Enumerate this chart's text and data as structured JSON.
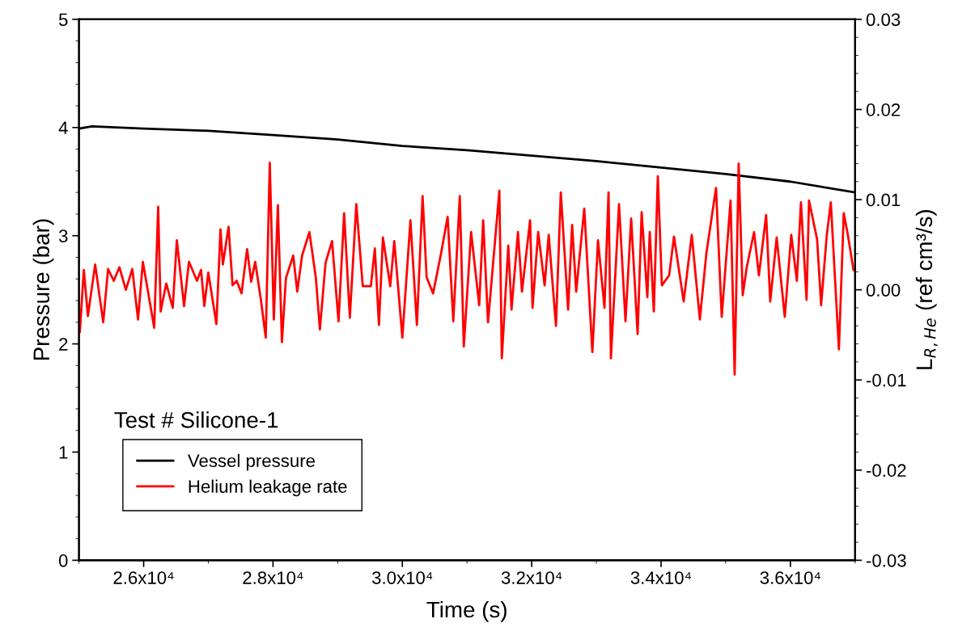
{
  "chart_data": {
    "type": "line",
    "xlabel": "Time (s)",
    "ylabel": "Pressure (bar)",
    "y2label": "L$_{R,He}$ (ref cm³/s)",
    "annotations": [
      "Test # Silicone-1"
    ],
    "xlim": [
      25000,
      37000
    ],
    "xticks": [
      {
        "value": 26000,
        "label": "2.6x10⁴"
      },
      {
        "value": 28000,
        "label": "2.8x10⁴"
      },
      {
        "value": 30000,
        "label": "3.0x10⁴"
      },
      {
        "value": 32000,
        "label": "3.2x10⁴"
      },
      {
        "value": 34000,
        "label": "3.4x10⁴"
      },
      {
        "value": 36000,
        "label": "3.6x10⁴"
      }
    ],
    "ylim": [
      0,
      5
    ],
    "yticks": [
      0,
      1,
      2,
      3,
      4,
      5
    ],
    "y2lim": [
      -0.03,
      0.03
    ],
    "y2ticks": [
      {
        "value": -0.03,
        "label": "-0.03"
      },
      {
        "value": -0.02,
        "label": "-0.02"
      },
      {
        "value": -0.01,
        "label": "-0.01"
      },
      {
        "value": 0,
        "label": "0.00"
      },
      {
        "value": 0.01,
        "label": "0.01"
      },
      {
        "value": 0.02,
        "label": "0.02"
      },
      {
        "value": 0.03,
        "label": "0.03"
      }
    ],
    "legend": "bottom left",
    "grid": false,
    "marker": "none",
    "line_style": "solid",
    "series": [
      {
        "name": "Vessel pressure",
        "color": "#000000",
        "axis": "y",
        "x": [
          25000,
          25200,
          26000,
          27000,
          28000,
          29000,
          30000,
          31000,
          32000,
          33000,
          34000,
          35000,
          36000,
          37000
        ],
        "values": [
          3.99,
          4.01,
          3.99,
          3.97,
          3.93,
          3.89,
          3.83,
          3.79,
          3.74,
          3.69,
          3.63,
          3.57,
          3.5,
          3.4
        ]
      },
      {
        "name": "Helium leakage rate",
        "color": "#ff0000",
        "axis": "y2",
        "x": [
          25000,
          25013,
          25075,
          25138,
          25250,
          25375,
          25450,
          25538,
          25625,
          25725,
          25825,
          25913,
          25988,
          26163,
          26225,
          26263,
          26350,
          26450,
          26513,
          26625,
          26700,
          26825,
          26888,
          26938,
          27000,
          27125,
          27188,
          27225,
          27313,
          27375,
          27438,
          27513,
          27600,
          27663,
          27725,
          27813,
          27888,
          27950,
          28013,
          28075,
          28138,
          28200,
          28313,
          28375,
          28450,
          28563,
          28663,
          28725,
          28813,
          28913,
          29013,
          29100,
          29188,
          29288,
          29388,
          29513,
          29575,
          29638,
          29700,
          29813,
          29875,
          30000,
          30125,
          30225,
          30313,
          30375,
          30475,
          30600,
          30700,
          30788,
          30888,
          30950,
          31063,
          31188,
          31250,
          31325,
          31500,
          31538,
          31638,
          31688,
          31788,
          31850,
          31975,
          32013,
          32100,
          32200,
          32263,
          32375,
          32450,
          32563,
          32625,
          32688,
          32813,
          32938,
          33025,
          33125,
          33188,
          33225,
          33350,
          33450,
          33538,
          33638,
          33700,
          33788,
          33825,
          33888,
          33950,
          34013,
          34125,
          34200,
          34350,
          34475,
          34600,
          34700,
          34850,
          34938,
          35075,
          35138,
          35200,
          35263,
          35325,
          35438,
          35513,
          35625,
          35688,
          35788,
          35913,
          36013,
          36100,
          36163,
          36250,
          36288,
          36413,
          36475,
          36563,
          36625,
          36750,
          36825,
          36888,
          36975,
          37000
        ],
        "values": [
          -0.0029,
          -0.0047,
          0.0022,
          -0.0029,
          0.0028,
          -0.0036,
          0.0023,
          0.001,
          0.0025,
          0.0,
          0.0023,
          -0.0033,
          0.0031,
          -0.0042,
          0.0092,
          -0.0024,
          0.0007,
          -0.002,
          0.0055,
          -0.0018,
          0.0031,
          0.001,
          0.0022,
          -0.0018,
          0.0019,
          -0.0038,
          0.0067,
          0.0028,
          0.007,
          0.0005,
          0.001,
          -0.0004,
          0.0045,
          0.0009,
          0.0031,
          -0.0011,
          -0.0053,
          0.0141,
          -0.0033,
          0.0094,
          -0.0058,
          0.0013,
          0.0038,
          -0.0002,
          0.0038,
          0.0064,
          0.0013,
          -0.0044,
          0.003,
          0.0054,
          -0.0035,
          0.0085,
          -0.0031,
          0.0095,
          0.0004,
          0.0004,
          0.0046,
          -0.0039,
          0.0058,
          0.0004,
          0.0054,
          -0.0053,
          0.0077,
          -0.0039,
          0.0104,
          0.0014,
          -0.0004,
          0.0041,
          0.0081,
          -0.0035,
          0.0104,
          -0.0063,
          0.0064,
          -0.0017,
          0.0077,
          -0.0036,
          0.011,
          -0.0076,
          0.0049,
          -0.0022,
          0.0064,
          -0.0002,
          0.0077,
          -0.002,
          0.0064,
          0.0005,
          0.0061,
          -0.004,
          0.0108,
          -0.0022,
          0.0072,
          -0.0002,
          0.009,
          -0.0069,
          0.0055,
          -0.002,
          0.0108,
          -0.0076,
          0.0095,
          -0.0035,
          0.0079,
          -0.0049,
          0.0086,
          -0.0008,
          0.0064,
          -0.0024,
          0.0126,
          0.0005,
          0.0016,
          0.0059,
          -0.0013,
          0.0061,
          -0.0033,
          0.004,
          0.0113,
          -0.003,
          0.0099,
          -0.0094,
          0.014,
          -0.0006,
          0.0025,
          0.0064,
          0.0016,
          0.0083,
          -0.0013,
          0.0058,
          -0.003,
          0.0061,
          0.001,
          0.0097,
          -0.0011,
          0.0099,
          0.0056,
          -0.0017,
          0.0061,
          0.0097,
          -0.0066,
          0.0085,
          0.0061,
          0.0022,
          0.0021
        ]
      }
    ]
  }
}
